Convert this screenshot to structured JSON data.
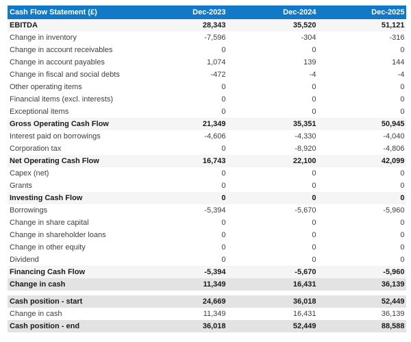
{
  "table": {
    "title": "Cash Flow Statement (£)",
    "columns": [
      "Dec-2023",
      "Dec-2024",
      "Dec-2025"
    ],
    "colors": {
      "header_bg": "#1279c7",
      "header_text": "#ffffff",
      "subtotal_row_bg": "#f5f5f5",
      "total_row_bg": "#e3e3e3",
      "normal_row_bg": "#ffffff"
    },
    "rows": [
      {
        "label": "EBITDA",
        "style": "subtotal",
        "values": [
          "28,343",
          "35,520",
          "51,121"
        ]
      },
      {
        "label": "Change in inventory",
        "style": "normal",
        "values": [
          "-7,596",
          "-304",
          "-316"
        ]
      },
      {
        "label": "Change in account receivables",
        "style": "normal",
        "values": [
          "0",
          "0",
          "0"
        ]
      },
      {
        "label": "Change in account payables",
        "style": "normal",
        "values": [
          "1,074",
          "139",
          "144"
        ]
      },
      {
        "label": "Change in fiscal and social debts",
        "style": "normal",
        "values": [
          "-472",
          "-4",
          "-4"
        ]
      },
      {
        "label": "Other operating items",
        "style": "normal",
        "values": [
          "0",
          "0",
          "0"
        ]
      },
      {
        "label": "Financial items (excl. interests)",
        "style": "normal",
        "values": [
          "0",
          "0",
          "0"
        ]
      },
      {
        "label": "Exceptional items",
        "style": "normal",
        "values": [
          "0",
          "0",
          "0"
        ]
      },
      {
        "label": "Gross Operating Cash Flow",
        "style": "subtotal",
        "values": [
          "21,349",
          "35,351",
          "50,945"
        ]
      },
      {
        "label": "Interest paid on borrowings",
        "style": "normal",
        "values": [
          "-4,606",
          "-4,330",
          "-4,040"
        ]
      },
      {
        "label": "Corporation tax",
        "style": "normal",
        "values": [
          "0",
          "-8,920",
          "-4,806"
        ]
      },
      {
        "label": "Net Operating Cash Flow",
        "style": "subtotal",
        "values": [
          "16,743",
          "22,100",
          "42,099"
        ]
      },
      {
        "label": "Capex (net)",
        "style": "normal",
        "values": [
          "0",
          "0",
          "0"
        ]
      },
      {
        "label": "Grants",
        "style": "normal",
        "values": [
          "0",
          "0",
          "0"
        ]
      },
      {
        "label": "Investing Cash Flow",
        "style": "subtotal",
        "values": [
          "0",
          "0",
          "0"
        ]
      },
      {
        "label": "Borrowings",
        "style": "normal",
        "values": [
          "-5,394",
          "-5,670",
          "-5,960"
        ]
      },
      {
        "label": "Change in share capital",
        "style": "normal",
        "values": [
          "0",
          "0",
          "0"
        ]
      },
      {
        "label": "Change in shareholder loans",
        "style": "normal",
        "values": [
          "0",
          "0",
          "0"
        ]
      },
      {
        "label": "Change in other equity",
        "style": "normal",
        "values": [
          "0",
          "0",
          "0"
        ]
      },
      {
        "label": "Dividend",
        "style": "normal",
        "values": [
          "0",
          "0",
          "0"
        ]
      },
      {
        "label": "Financing Cash Flow",
        "style": "subtotal",
        "values": [
          "-5,394",
          "-5,670",
          "-5,960"
        ]
      },
      {
        "label": "Change in cash",
        "style": "total",
        "values": [
          "11,349",
          "16,431",
          "36,139"
        ]
      }
    ],
    "cash_position_rows": [
      {
        "label": "Cash position - start",
        "style": "total",
        "values": [
          "24,669",
          "36,018",
          "52,449"
        ]
      },
      {
        "label": "Change in cash",
        "style": "normal",
        "values": [
          "11,349",
          "16,431",
          "36,139"
        ]
      },
      {
        "label": "Cash position - end",
        "style": "total",
        "values": [
          "36,018",
          "52,449",
          "88,588"
        ]
      }
    ]
  },
  "chart_data": {
    "type": "table",
    "title": "Cash Flow Statement (£)",
    "columns": [
      "Dec-2023",
      "Dec-2024",
      "Dec-2025"
    ],
    "rows": [
      {
        "label": "EBITDA",
        "values": [
          28343,
          35520,
          51121
        ]
      },
      {
        "label": "Change in inventory",
        "values": [
          -7596,
          -304,
          -316
        ]
      },
      {
        "label": "Change in account receivables",
        "values": [
          0,
          0,
          0
        ]
      },
      {
        "label": "Change in account payables",
        "values": [
          1074,
          139,
          144
        ]
      },
      {
        "label": "Change in fiscal and social debts",
        "values": [
          -472,
          -4,
          -4
        ]
      },
      {
        "label": "Other operating items",
        "values": [
          0,
          0,
          0
        ]
      },
      {
        "label": "Financial items (excl. interests)",
        "values": [
          0,
          0,
          0
        ]
      },
      {
        "label": "Exceptional items",
        "values": [
          0,
          0,
          0
        ]
      },
      {
        "label": "Gross Operating Cash Flow",
        "values": [
          21349,
          35351,
          50945
        ]
      },
      {
        "label": "Interest paid on borrowings",
        "values": [
          -4606,
          -4330,
          -4040
        ]
      },
      {
        "label": "Corporation tax",
        "values": [
          0,
          -8920,
          -4806
        ]
      },
      {
        "label": "Net Operating Cash Flow",
        "values": [
          16743,
          22100,
          42099
        ]
      },
      {
        "label": "Capex (net)",
        "values": [
          0,
          0,
          0
        ]
      },
      {
        "label": "Grants",
        "values": [
          0,
          0,
          0
        ]
      },
      {
        "label": "Investing Cash Flow",
        "values": [
          0,
          0,
          0
        ]
      },
      {
        "label": "Borrowings",
        "values": [
          -5394,
          -5670,
          -5960
        ]
      },
      {
        "label": "Change in share capital",
        "values": [
          0,
          0,
          0
        ]
      },
      {
        "label": "Change in shareholder loans",
        "values": [
          0,
          0,
          0
        ]
      },
      {
        "label": "Change in other equity",
        "values": [
          0,
          0,
          0
        ]
      },
      {
        "label": "Dividend",
        "values": [
          0,
          0,
          0
        ]
      },
      {
        "label": "Financing Cash Flow",
        "values": [
          -5394,
          -5670,
          -5960
        ]
      },
      {
        "label": "Change in cash",
        "values": [
          11349,
          16431,
          36139
        ]
      },
      {
        "label": "Cash position - start",
        "values": [
          24669,
          36018,
          52449
        ]
      },
      {
        "label": "Change in cash",
        "values": [
          11349,
          16431,
          36139
        ]
      },
      {
        "label": "Cash position - end",
        "values": [
          36018,
          52449,
          88588
        ]
      }
    ]
  }
}
